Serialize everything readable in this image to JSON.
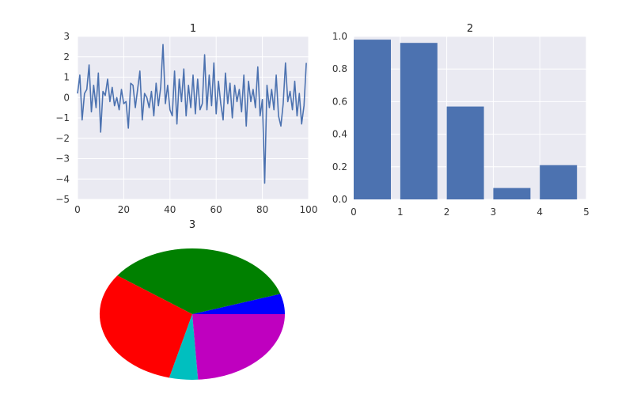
{
  "colors": {
    "panel_bg": "#eaeaf2",
    "grid": "#ffffff",
    "series": "#4c72b0"
  },
  "chart_data": [
    {
      "type": "line",
      "title": "1",
      "xlabel": "",
      "ylabel": "",
      "xlim": [
        0,
        100
      ],
      "ylim": [
        -5,
        3
      ],
      "grid": true,
      "xticks": [
        "0",
        "20",
        "40",
        "60",
        "80",
        "100"
      ],
      "yticks": [
        "3",
        "2",
        "1",
        "0",
        "−1",
        "−2",
        "−3",
        "−4",
        "−5"
      ],
      "series": [
        {
          "x": [
            0,
            1,
            2,
            3,
            4,
            5,
            6,
            7,
            8,
            9,
            10,
            11,
            12,
            13,
            14,
            15,
            16,
            17,
            18,
            19,
            20,
            21,
            22,
            23,
            24,
            25,
            26,
            27,
            28,
            29,
            30,
            31,
            32,
            33,
            34,
            35,
            36,
            37,
            38,
            39,
            40,
            41,
            42,
            43,
            44,
            45,
            46,
            47,
            48,
            49,
            50,
            51,
            52,
            53,
            54,
            55,
            56,
            57,
            58,
            59,
            60,
            61,
            62,
            63,
            64,
            65,
            66,
            67,
            68,
            69,
            70,
            71,
            72,
            73,
            74,
            75,
            76,
            77,
            78,
            79,
            80,
            81,
            82,
            83,
            84,
            85,
            86,
            87,
            88,
            89,
            90,
            91,
            92,
            93,
            94,
            95,
            96,
            97,
            98,
            99
          ],
          "y": [
            0.2,
            1.1,
            -1.1,
            0.2,
            0.4,
            1.6,
            -0.7,
            0.6,
            -0.5,
            1.2,
            -1.7,
            0.3,
            0.1,
            0.9,
            -0.2,
            0.5,
            -0.4,
            0.0,
            -0.6,
            0.4,
            -0.3,
            -0.2,
            -1.5,
            0.7,
            0.6,
            -0.5,
            0.4,
            1.3,
            -1.1,
            0.2,
            0.0,
            -0.5,
            0.3,
            -0.9,
            0.7,
            -0.4,
            0.5,
            2.6,
            -0.3,
            0.6,
            -0.6,
            -0.9,
            1.3,
            -1.3,
            0.9,
            -0.2,
            1.4,
            -0.9,
            0.6,
            -0.5,
            1.1,
            -0.8,
            0.9,
            -0.6,
            -0.3,
            2.1,
            -0.6,
            1.1,
            -0.4,
            1.7,
            -0.8,
            0.8,
            -0.3,
            -1.1,
            1.2,
            -0.3,
            0.7,
            -1.0,
            0.6,
            -0.2,
            0.4,
            -0.7,
            1.1,
            -1.4,
            0.8,
            -0.2,
            0.4,
            -0.5,
            1.5,
            -0.9,
            -0.1,
            -4.2,
            0.6,
            -0.5,
            0.4,
            -0.6,
            1.1,
            -0.9,
            -1.4,
            -0.3,
            1.7,
            -0.2,
            0.3,
            -0.6,
            0.8,
            -0.9,
            0.2,
            -1.3,
            -0.4,
            1.7
          ]
        }
      ]
    },
    {
      "type": "bar",
      "title": "2",
      "xlabel": "",
      "ylabel": "",
      "xlim": [
        0,
        5
      ],
      "ylim": [
        0,
        1.0
      ],
      "grid": true,
      "xticks": [
        "0",
        "1",
        "2",
        "3",
        "4",
        "5"
      ],
      "yticks": [
        "1.0",
        "0.8",
        "0.6",
        "0.4",
        "0.2",
        "0.0"
      ],
      "categories": [
        0,
        1,
        2,
        3,
        4
      ],
      "values": [
        0.98,
        0.96,
        0.57,
        0.07,
        0.21
      ]
    },
    {
      "type": "pie",
      "title": "3",
      "slices": [
        {
          "value": 0.05,
          "color": "#0000ff"
        },
        {
          "value": 0.35,
          "color": "#008000"
        },
        {
          "value": 0.31,
          "color": "#ff0000"
        },
        {
          "value": 0.05,
          "color": "#00bfbf"
        },
        {
          "value": 0.24,
          "color": "#bf00bf"
        }
      ]
    }
  ]
}
